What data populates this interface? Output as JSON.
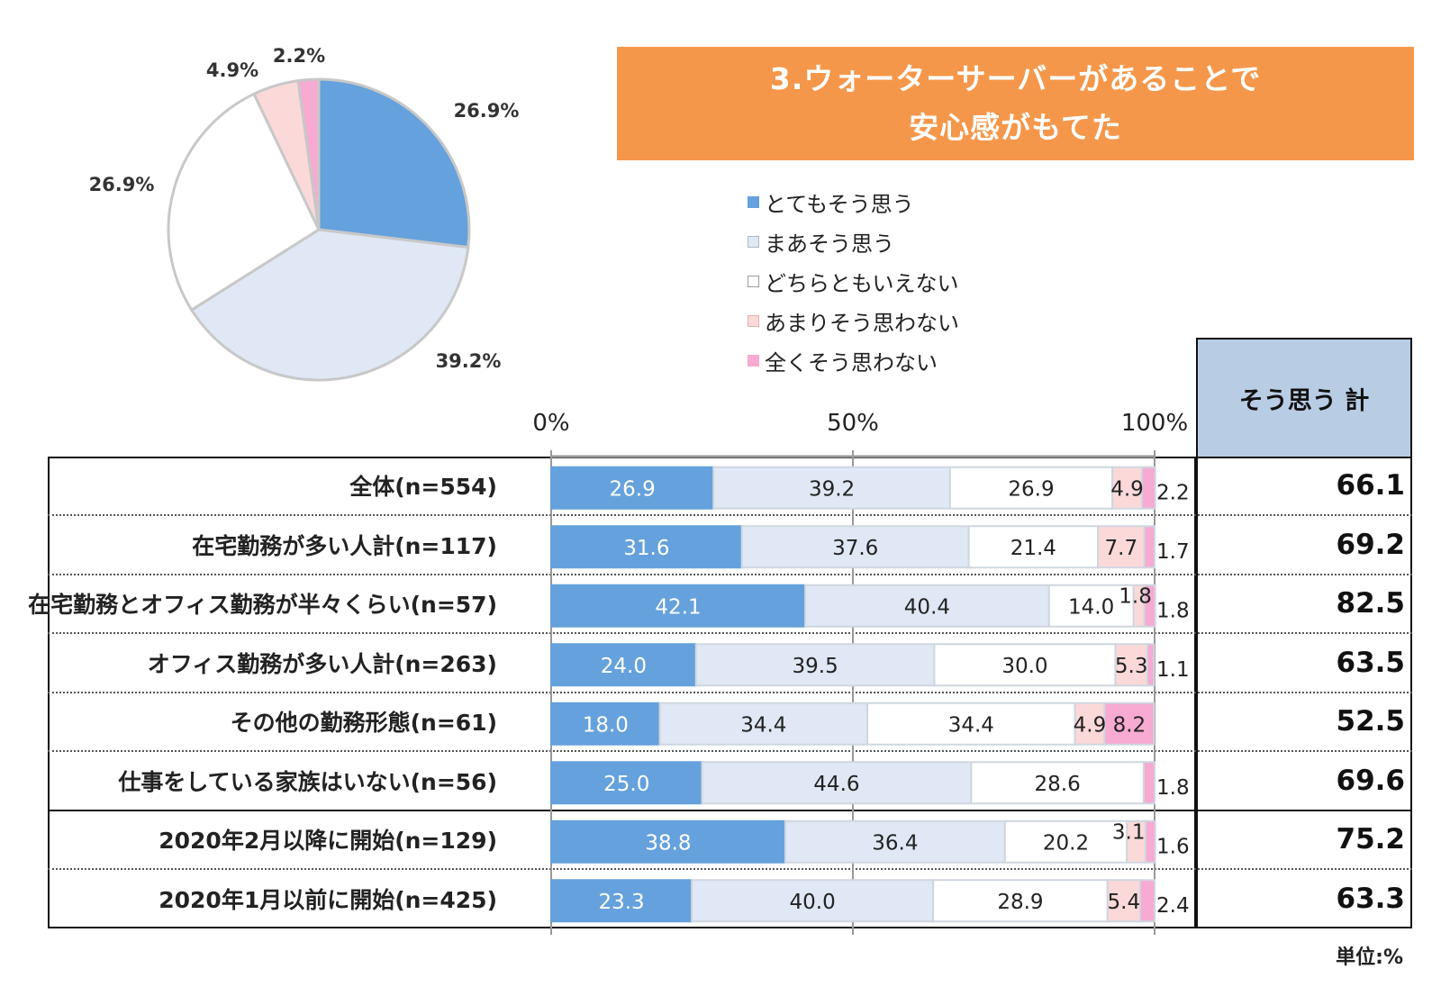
{
  "title": {
    "line1": "3.ウォーターサーバーがあることで",
    "line2": "安心感がもてた"
  },
  "total_header": "そう思う 計",
  "unit_note": "単位:%",
  "colors": {
    "s1": "#65a1dc",
    "s2": "#dfe8f4",
    "s3": "#ffffff",
    "s4": "#fcd9d9",
    "s5": "#f7aad2",
    "banner": "#f5974a",
    "total_header_bg": "#b8cce4"
  },
  "chart_data": [
    {
      "type": "pie",
      "labels": [
        "とてもそう思う",
        "まあそう思う",
        "どちらともいえない",
        "あまりそう思わない",
        "全くそう思わない"
      ],
      "values": [
        26.9,
        39.2,
        26.9,
        4.9,
        2.2
      ],
      "value_labels": [
        "26.9%",
        "39.2%",
        "26.9%",
        "4.9%",
        "2.2%"
      ]
    },
    {
      "type": "bar",
      "orientation": "horizontal",
      "stacked": true,
      "x_ticks": [
        "0%",
        "50%",
        "100%"
      ],
      "xlim": [
        0,
        100
      ],
      "series": [
        {
          "name": "とてもそう思う",
          "values": [
            26.9,
            31.6,
            42.1,
            24.0,
            18.0,
            25.0,
            38.8,
            23.3
          ]
        },
        {
          "name": "まあそう思う",
          "values": [
            39.2,
            37.6,
            40.4,
            39.5,
            34.4,
            44.6,
            36.4,
            40.0
          ]
        },
        {
          "name": "どちらともいえない",
          "values": [
            26.9,
            21.4,
            14.0,
            30.0,
            34.4,
            28.6,
            20.2,
            28.9
          ]
        },
        {
          "name": "あまりそう思わない",
          "values": [
            4.9,
            7.7,
            1.8,
            5.3,
            4.9,
            0,
            3.1,
            5.4
          ]
        },
        {
          "name": "全くそう思わない",
          "values": [
            2.2,
            1.7,
            1.8,
            1.1,
            8.2,
            1.8,
            1.6,
            2.4
          ]
        }
      ],
      "rows": [
        {
          "label": "全体(n=554)",
          "total": "66.1"
        },
        {
          "label": "在宅勤務が多い人計(n=117)",
          "total": "69.2"
        },
        {
          "label": "在宅勤務とオフィス勤務が半々くらい(n=57)",
          "total": "82.5"
        },
        {
          "label": "オフィス勤務が多い人計(n=263)",
          "total": "63.5"
        },
        {
          "label": "その他の勤務形態(n=61)",
          "total": "52.5"
        },
        {
          "label": "仕事をしている家族はいない(n=56)",
          "total": "69.6"
        },
        {
          "label": "2020年2月以降に開始(n=129)",
          "total": "75.2"
        },
        {
          "label": "2020年1月以前に開始(n=425)",
          "total": "63.3"
        }
      ]
    }
  ]
}
